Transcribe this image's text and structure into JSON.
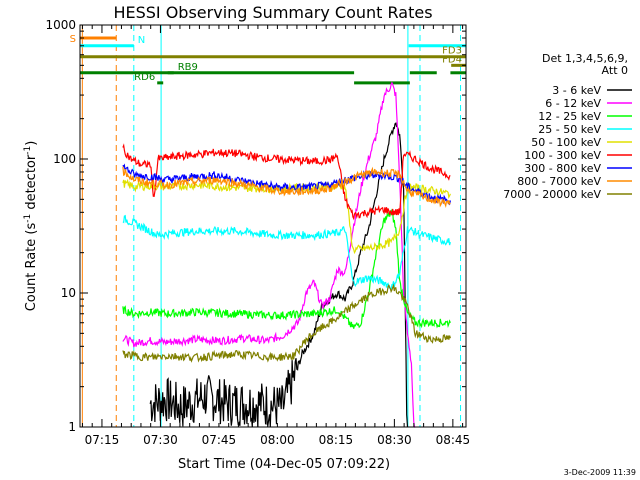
{
  "chart_data": {
    "type": "line",
    "title": "HESSI Observing Summary Count Rates",
    "xlabel": "Start Time (04-Dec-05 07:09:22)",
    "ylabel_main": "Count Rate (s",
    "ylabel_sup1": "-1",
    "ylabel_mid": " detector",
    "ylabel_sup2": "-1",
    "ylabel_end": ")",
    "y_scale": "log",
    "ylim": [
      1,
      1000
    ],
    "xlim_minutes": [
      0,
      99
    ],
    "x_ticks": [
      {
        "label": "07:15",
        "min": 5.63
      },
      {
        "label": "07:30",
        "min": 20.63
      },
      {
        "label": "07:45",
        "min": 35.63
      },
      {
        "label": "08:00",
        "min": 50.63
      },
      {
        "label": "08:15",
        "min": 65.63
      },
      {
        "label": "08:30",
        "min": 80.63
      },
      {
        "label": "08:45",
        "min": 95.63
      }
    ],
    "y_ticks": [
      {
        "label": "1",
        "value": 1
      },
      {
        "label": "10",
        "value": 10
      },
      {
        "label": "100",
        "value": 100
      },
      {
        "label": "1000",
        "value": 1000
      }
    ],
    "legend_header": [
      "Det 1,3,4,5,6,9,",
      "Att 0"
    ],
    "legend_placement": "right",
    "timestamp": "3-Dec-2009 11:39",
    "series": [
      {
        "name": "3 - 6 keV",
        "color": "#000000",
        "points": [
          [
            18,
            1.5
          ],
          [
            22,
            1.6
          ],
          [
            26,
            1.4
          ],
          [
            32,
            1.7
          ],
          [
            38,
            1.5
          ],
          [
            46,
            1.5
          ],
          [
            52,
            1.4
          ],
          [
            54,
            2
          ],
          [
            57,
            3.5
          ],
          [
            60,
            5
          ],
          [
            62,
            8
          ],
          [
            64,
            9
          ],
          [
            66,
            10
          ],
          [
            68,
            9
          ],
          [
            70,
            12
          ],
          [
            72,
            20
          ],
          [
            74,
            30
          ],
          [
            76,
            55
          ],
          [
            78,
            100
          ],
          [
            80,
            160
          ],
          [
            81,
            190
          ],
          [
            82,
            150
          ],
          [
            83,
            60
          ],
          [
            84,
            0.5
          ]
        ]
      },
      {
        "name": "6 - 12 keV",
        "color": "#ff00ff",
        "points": [
          [
            11,
            4.6
          ],
          [
            14,
            4.2
          ],
          [
            18,
            4.4
          ],
          [
            22,
            4.3
          ],
          [
            30,
            4.5
          ],
          [
            36,
            4.4
          ],
          [
            42,
            4.6
          ],
          [
            48,
            4.4
          ],
          [
            52,
            4.8
          ],
          [
            56,
            6
          ],
          [
            58,
            10
          ],
          [
            60,
            12
          ],
          [
            62,
            8
          ],
          [
            64,
            9
          ],
          [
            66,
            15
          ],
          [
            68,
            14
          ],
          [
            70,
            30
          ],
          [
            72,
            60
          ],
          [
            74,
            100
          ],
          [
            76,
            150
          ],
          [
            78,
            300
          ],
          [
            80,
            360
          ],
          [
            81,
            300
          ],
          [
            82,
            70
          ],
          [
            83,
            10
          ],
          [
            84,
            5
          ],
          [
            85,
            3
          ],
          [
            86,
            0.5
          ]
        ]
      },
      {
        "name": "12 - 25 keV",
        "color": "#00ff00",
        "points": [
          [
            11,
            7.5
          ],
          [
            14,
            7
          ],
          [
            18,
            7.2
          ],
          [
            22,
            7
          ],
          [
            30,
            7.2
          ],
          [
            40,
            7
          ],
          [
            50,
            6.8
          ],
          [
            60,
            7
          ],
          [
            66,
            7.5
          ],
          [
            68,
            6.5
          ],
          [
            70,
            5.5
          ],
          [
            72,
            6
          ],
          [
            74,
            10
          ],
          [
            76,
            20
          ],
          [
            78,
            35
          ],
          [
            80,
            40
          ],
          [
            81,
            30
          ],
          [
            82,
            12
          ],
          [
            84,
            7
          ],
          [
            86,
            6
          ],
          [
            90,
            6
          ],
          [
            95,
            6
          ]
        ]
      },
      {
        "name": "25 - 50 keV",
        "color": "#00ffff",
        "points": [
          [
            11,
            36
          ],
          [
            14,
            33
          ],
          [
            18,
            29
          ],
          [
            20,
            27
          ],
          [
            24,
            28
          ],
          [
            30,
            29
          ],
          [
            40,
            29
          ],
          [
            50,
            27
          ],
          [
            60,
            27
          ],
          [
            66,
            28
          ],
          [
            68,
            30
          ],
          [
            70,
            12
          ],
          [
            74,
            13
          ],
          [
            78,
            12
          ],
          [
            80,
            11
          ],
          [
            82,
            14
          ],
          [
            84,
            30
          ],
          [
            88,
            27
          ],
          [
            92,
            25
          ],
          [
            95,
            24
          ]
        ]
      },
      {
        "name": "50 - 100 keV",
        "color": "#e0e000",
        "points": [
          [
            11,
            66
          ],
          [
            14,
            62
          ],
          [
            18,
            63
          ],
          [
            22,
            62
          ],
          [
            30,
            64
          ],
          [
            40,
            61
          ],
          [
            50,
            60
          ],
          [
            60,
            62
          ],
          [
            66,
            63
          ],
          [
            68,
            62
          ],
          [
            70,
            21
          ],
          [
            76,
            22
          ],
          [
            80,
            24
          ],
          [
            82,
            30
          ],
          [
            84,
            62
          ],
          [
            88,
            60
          ],
          [
            92,
            57
          ],
          [
            95,
            55
          ]
        ]
      },
      {
        "name": "100 - 300 keV",
        "color": "#ff0000",
        "points": [
          [
            11,
            120
          ],
          [
            13,
            100
          ],
          [
            16,
            90
          ],
          [
            18,
            92
          ],
          [
            19,
            50
          ],
          [
            20,
            100
          ],
          [
            25,
            105
          ],
          [
            30,
            108
          ],
          [
            35,
            112
          ],
          [
            40,
            110
          ],
          [
            45,
            104
          ],
          [
            50,
            100
          ],
          [
            55,
            98
          ],
          [
            60,
            96
          ],
          [
            64,
            98
          ],
          [
            66,
            105
          ],
          [
            68,
            50
          ],
          [
            70,
            38
          ],
          [
            74,
            40
          ],
          [
            78,
            42
          ],
          [
            80,
            40
          ],
          [
            82,
            40
          ],
          [
            83,
            110
          ],
          [
            86,
            100
          ],
          [
            90,
            85
          ],
          [
            95,
            75
          ]
        ]
      },
      {
        "name": "300 - 800 keV",
        "color": "#0000ff",
        "points": [
          [
            11,
            88
          ],
          [
            14,
            76
          ],
          [
            18,
            74
          ],
          [
            22,
            70
          ],
          [
            26,
            72
          ],
          [
            30,
            74
          ],
          [
            35,
            76
          ],
          [
            40,
            70
          ],
          [
            45,
            66
          ],
          [
            50,
            62
          ],
          [
            55,
            61
          ],
          [
            60,
            62
          ],
          [
            64,
            64
          ],
          [
            68,
            70
          ],
          [
            72,
            74
          ],
          [
            76,
            76
          ],
          [
            80,
            74
          ],
          [
            82,
            72
          ],
          [
            84,
            62
          ],
          [
            88,
            55
          ],
          [
            92,
            50
          ],
          [
            95,
            49
          ]
        ]
      },
      {
        "name": "800 - 7000 keV",
        "color": "#ff8c00",
        "points": [
          [
            11,
            82
          ],
          [
            14,
            70
          ],
          [
            18,
            66
          ],
          [
            22,
            64
          ],
          [
            26,
            66
          ],
          [
            30,
            68
          ],
          [
            35,
            70
          ],
          [
            40,
            66
          ],
          [
            45,
            62
          ],
          [
            50,
            58
          ],
          [
            55,
            57
          ],
          [
            60,
            58
          ],
          [
            64,
            60
          ],
          [
            68,
            68
          ],
          [
            72,
            76
          ],
          [
            76,
            80
          ],
          [
            80,
            78
          ],
          [
            82,
            76
          ],
          [
            84,
            58
          ],
          [
            88,
            52
          ],
          [
            92,
            48
          ],
          [
            95,
            47
          ]
        ]
      },
      {
        "name": "7000 - 20000 keV",
        "color": "#808000",
        "points": [
          [
            11,
            3.5
          ],
          [
            14,
            3.4
          ],
          [
            18,
            3.3
          ],
          [
            22,
            3.4
          ],
          [
            30,
            3.3
          ],
          [
            40,
            3.5
          ],
          [
            50,
            3.3
          ],
          [
            55,
            3.4
          ],
          [
            58,
            4.5
          ],
          [
            62,
            5.5
          ],
          [
            66,
            6.5
          ],
          [
            70,
            8
          ],
          [
            74,
            9.5
          ],
          [
            78,
            10.5
          ],
          [
            80,
            11
          ],
          [
            82,
            10
          ],
          [
            84,
            8
          ],
          [
            86,
            5
          ],
          [
            90,
            4.5
          ],
          [
            95,
            4.6
          ]
        ]
      }
    ],
    "status_bars": [
      {
        "label": "S",
        "color": "#ff8000",
        "value": 800,
        "start_min": 0,
        "end_min": 9.3
      },
      {
        "label": "N",
        "color": "#00ffff",
        "value": 700,
        "start_min": 0,
        "end_min": 13.8
      },
      {
        "label": "",
        "color": "#00ffff",
        "value": 700,
        "start_min": 84.3,
        "end_min": 99
      },
      {
        "label": "FD3",
        "color": "#808000",
        "value": 580,
        "start_min": 0,
        "end_min": 99
      },
      {
        "label": "FD4",
        "color": "#808000",
        "value": 500,
        "start_min": 95.2,
        "end_min": 99
      },
      {
        "label": "",
        "color": "#008000",
        "value": 440,
        "start_min": 0,
        "end_min": 70.3
      },
      {
        "label": "RD6",
        "color": "#008000",
        "value": 370,
        "start_min": 19.8,
        "end_min": 21.3
      },
      {
        "label": "RB9",
        "color": "#008000",
        "value": 440,
        "start_min": 22.5,
        "end_min": 22.5
      },
      {
        "label": "",
        "color": "#008000",
        "value": 370,
        "start_min": 70.3,
        "end_min": 84.6
      },
      {
        "label": "",
        "color": "#008000",
        "value": 440,
        "start_min": 84.6,
        "end_min": 91.5
      },
      {
        "label": "",
        "color": "#008000",
        "value": 440,
        "start_min": 95,
        "end_min": 99
      }
    ],
    "vertical_markers": [
      {
        "min": 0.6,
        "color": "#ff8000",
        "dash": false
      },
      {
        "min": 9.3,
        "color": "#ff8000",
        "dash": true
      },
      {
        "min": 13.8,
        "color": "#00ffff",
        "dash": true
      },
      {
        "min": 20.8,
        "color": "#00ffff",
        "dash": false
      },
      {
        "min": 84.1,
        "color": "#00ffff",
        "dash": false
      },
      {
        "min": 87.2,
        "color": "#00ffff",
        "dash": true
      },
      {
        "min": 97.6,
        "color": "#00ffff",
        "dash": true
      }
    ]
  }
}
